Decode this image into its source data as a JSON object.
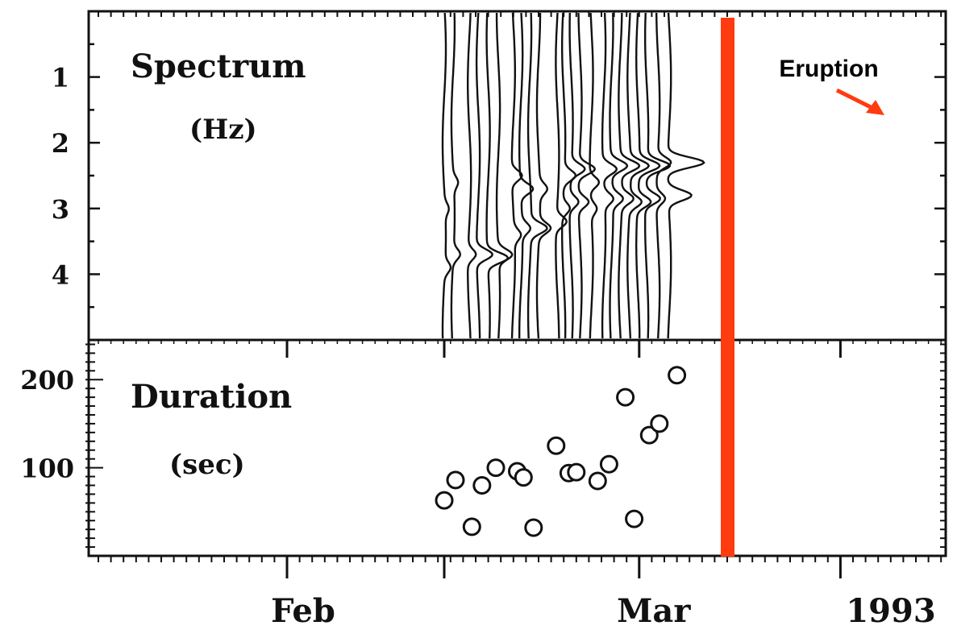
{
  "chart_data": [
    {
      "panel": "spectrum",
      "type": "line",
      "title": "Spectrum",
      "ylabel": "(Hz)",
      "ylim": [
        5,
        0
      ],
      "y_ticks": [
        "1",
        "2",
        "3",
        "4"
      ],
      "series_description": "stacked spectral traces of daily long-period events, peaks shifting from ~4 Hz to ~2.5-3 Hz",
      "traces": [
        {
          "day": 12.5,
          "peak_hz": [
            3.9,
            3.0
          ],
          "strength": 0.25
        },
        {
          "day": 13.2,
          "peak_hz": [
            3.7,
            2.6
          ],
          "strength": 0.3
        },
        {
          "day": 14.5,
          "peak_hz": [
            3.7
          ],
          "strength": 0.35
        },
        {
          "day": 15.2,
          "peak_hz": [
            3.7
          ],
          "strength": 0.7
        },
        {
          "day": 16.0,
          "peak_hz": [
            3.75
          ],
          "strength": 0.9
        },
        {
          "day": 16.8,
          "peak_hz": [
            3.7
          ],
          "strength": 0.6
        },
        {
          "day": 18.0,
          "peak_hz": [
            2.5,
            3.4
          ],
          "strength": 0.45
        },
        {
          "day": 18.6,
          "peak_hz": [
            2.7,
            3.3
          ],
          "strength": 0.55
        },
        {
          "day": 19.3,
          "peak_hz": [
            3.3
          ],
          "strength": 0.7
        },
        {
          "day": 20.0,
          "peak_hz": [
            3.3,
            2.7
          ],
          "strength": 0.5
        },
        {
          "day": 21.5,
          "peak_hz": [
            3.2
          ],
          "strength": 0.45
        },
        {
          "day": 22.0,
          "peak_hz": [
            2.5,
            3.0
          ],
          "strength": 0.5
        },
        {
          "day": 22.6,
          "peak_hz": [
            2.4,
            2.9
          ],
          "strength": 0.6
        },
        {
          "day": 23.3,
          "peak_hz": [
            2.4,
            2.9
          ],
          "strength": 0.7
        },
        {
          "day": 24.2,
          "peak_hz": [
            2.6,
            3.0
          ],
          "strength": 0.4
        },
        {
          "day": 25.2,
          "peak_hz": [
            2.4,
            2.85
          ],
          "strength": 0.6
        },
        {
          "day": 25.8,
          "peak_hz": [
            2.35,
            2.85
          ],
          "strength": 0.7
        },
        {
          "day": 26.5,
          "peak_hz": [
            2.35,
            2.85
          ],
          "strength": 0.8
        },
        {
          "day": 27.2,
          "peak_hz": [
            2.35,
            2.9
          ],
          "strength": 0.8
        },
        {
          "day": 27.9,
          "peak_hz": [
            2.35,
            2.9
          ],
          "strength": 0.9
        },
        {
          "day": 28.6,
          "peak_hz": [
            2.35,
            2.85
          ],
          "strength": 1.0
        },
        {
          "day": 29.5,
          "peak_hz": [
            2.3,
            2.85
          ],
          "strength": 0.6
        },
        {
          "day": 30.4,
          "peak_hz": [
            2.3,
            2.8
          ],
          "strength": 1.6
        }
      ]
    },
    {
      "panel": "duration",
      "type": "scatter",
      "title": "Duration",
      "ylabel": "(sec)",
      "ylim": [
        0,
        245
      ],
      "y_ticks": [
        "100",
        "200"
      ],
      "points": [
        {
          "x": 12.5,
          "y": 63
        },
        {
          "x": 13.4,
          "y": 86
        },
        {
          "x": 14.7,
          "y": 33
        },
        {
          "x": 15.5,
          "y": 80
        },
        {
          "x": 16.6,
          "y": 100
        },
        {
          "x": 18.3,
          "y": 96
        },
        {
          "x": 18.8,
          "y": 89
        },
        {
          "x": 19.6,
          "y": 32
        },
        {
          "x": 21.4,
          "y": 125
        },
        {
          "x": 22.4,
          "y": 94
        },
        {
          "x": 23.0,
          "y": 95
        },
        {
          "x": 24.7,
          "y": 85
        },
        {
          "x": 25.6,
          "y": 104
        },
        {
          "x": 26.9,
          "y": 180
        },
        {
          "x": 27.6,
          "y": 42
        },
        {
          "x": 28.8,
          "y": 137
        },
        {
          "x": 29.6,
          "y": 150
        },
        {
          "x": 31.0,
          "y": 205
        }
      ]
    }
  ],
  "x_axis": {
    "labels": [
      {
        "text": "Feb",
        "day": 0
      },
      {
        "text": "Mar",
        "day": 28
      },
      {
        "text": "1993",
        "day": 36
      }
    ]
  },
  "annotation": {
    "label": "Eruption",
    "day": 35.0,
    "color": "#ff3b10"
  }
}
